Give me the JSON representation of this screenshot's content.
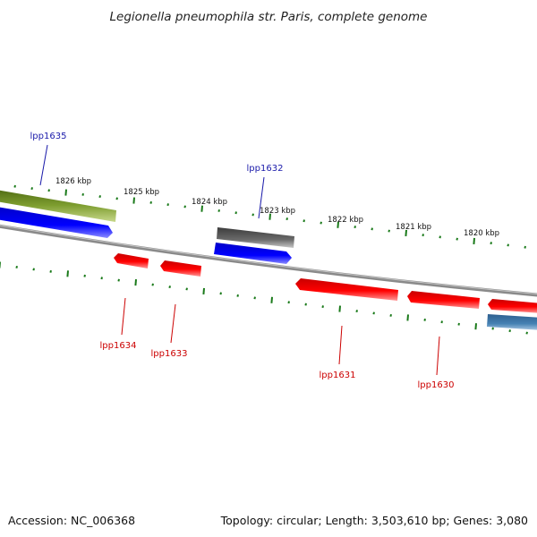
{
  "title": "Legionella pneumophila str. Paris, complete genome",
  "footer": {
    "accession": "Accession: NC_006368",
    "summary": "Topology: circular; Length: 3,503,610 bp; Genes: 3,080"
  },
  "colors": {
    "backbone": "#8a8a8a",
    "ticks": "#1a7a1a",
    "forward_label": "#1a1aaa",
    "reverse_label": "#cc0000",
    "feature_green": "#6b8e23",
    "feature_blue": "#0000ff",
    "feature_gray": "#666666",
    "feature_red": "#ff0000",
    "feature_steelblue": "#4682b4"
  },
  "scale_labels": [
    "1826 kbp",
    "1825 kbp",
    "1824 kbp",
    "1823 kbp",
    "1822 kbp",
    "1821 kbp",
    "1820 kbp"
  ],
  "gene_labels": {
    "lpp1635": "lpp1635",
    "lpp1632": "lpp1632",
    "lpp1634": "lpp1634",
    "lpp1633": "lpp1633",
    "lpp1631": "lpp1631",
    "lpp1630": "lpp1630"
  }
}
